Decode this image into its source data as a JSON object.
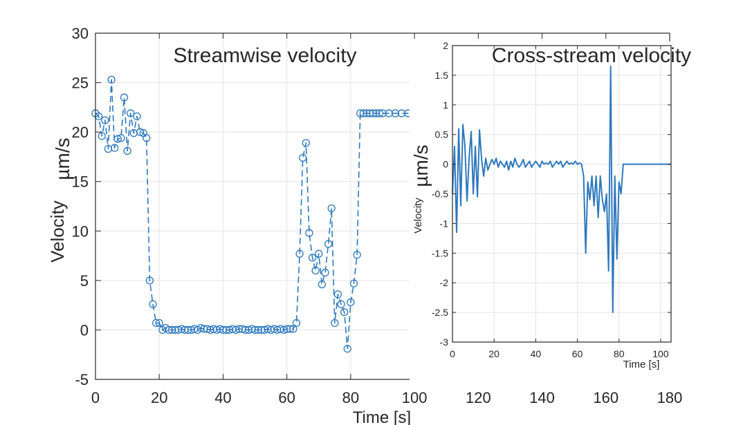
{
  "chart_data": [
    {
      "type": "line",
      "title": "Streamwise velocity",
      "xlabel": "Time [s]",
      "ylabel": "Velocity",
      "ylabel_unit": "µm/s",
      "xlim": [
        0,
        180
      ],
      "ylim": [
        -5,
        30
      ],
      "x_ticks": [
        "0",
        "20",
        "40",
        "60",
        "80",
        "100",
        "120",
        "140",
        "160",
        "180"
      ],
      "y_ticks": [
        "-5",
        "0",
        "5",
        "10",
        "15",
        "20",
        "25",
        "30"
      ],
      "grid": true,
      "line_style": "dashed",
      "marker": "circle",
      "color": "#2e78bd",
      "series": [
        {
          "x": [
            0,
            1,
            2,
            3,
            4,
            5,
            6,
            7,
            8,
            9,
            10,
            11,
            12,
            13,
            14,
            15,
            16,
            17,
            18,
            19,
            20,
            21,
            22,
            23,
            24,
            25,
            26,
            27,
            28,
            29,
            30,
            31,
            32,
            33,
            34,
            35,
            36,
            37,
            38,
            39,
            40,
            41,
            42,
            43,
            44,
            45,
            46,
            47,
            48,
            49,
            50,
            51,
            52,
            53,
            54,
            55,
            56,
            57,
            58,
            59,
            60,
            61,
            62,
            63,
            64,
            65,
            66,
            67,
            68,
            69,
            70,
            71,
            72,
            73,
            74,
            75,
            76,
            77,
            78,
            79,
            80,
            81,
            82,
            83,
            84,
            85,
            86,
            87,
            88,
            89,
            90,
            92,
            94,
            96,
            98,
            100,
            102,
            104,
            106,
            108,
            110,
            112,
            114,
            116,
            118,
            120
          ],
          "y": [
            21.9,
            21.6,
            19.6,
            21.2,
            18.3,
            25.3,
            18.4,
            19.3,
            19.4,
            23.5,
            18.1,
            21.9,
            19.9,
            21.6,
            20.0,
            19.9,
            19.4,
            5.0,
            2.6,
            0.7,
            0.7,
            0.0,
            0.2,
            0.0,
            0.0,
            0.0,
            0.0,
            0.1,
            0.0,
            0.0,
            0.0,
            0.1,
            0.0,
            0.2,
            0.1,
            0.1,
            0.0,
            0.1,
            0.0,
            0.1,
            0.0,
            0.0,
            0.0,
            0.1,
            0.0,
            0.1,
            0.1,
            0.0,
            0.0,
            0.1,
            0.0,
            0.0,
            0.0,
            0.0,
            0.1,
            0.0,
            0.1,
            0.0,
            0.1,
            0.0,
            0.1,
            0.1,
            0.1,
            0.7,
            7.7,
            17.4,
            18.9,
            9.8,
            7.3,
            6.0,
            7.7,
            4.6,
            5.8,
            8.7,
            12.3,
            0.7,
            3.6,
            2.6,
            1.8,
            -1.9,
            2.8,
            4.7,
            7.6,
            21.9,
            21.9,
            21.9,
            21.9,
            21.9,
            21.9,
            21.9,
            21.9,
            21.9,
            21.9,
            21.9,
            21.9,
            21.9,
            21.9,
            21.9,
            21.9,
            21.9,
            21.9,
            21.9,
            21.9,
            21.9,
            21.9,
            21.9
          ]
        }
      ]
    },
    {
      "type": "line",
      "title": "Cross-stream velocity",
      "xlabel": "Time [s]",
      "ylabel": "Velocity",
      "ylabel_unit": "µm/s",
      "xlim": [
        0,
        105
      ],
      "ylim": [
        -3,
        2
      ],
      "x_ticks": [
        "0",
        "20",
        "40",
        "60",
        "80",
        "100"
      ],
      "y_ticks": [
        "-3",
        "-2.5",
        "-2",
        "-1.5",
        "-1",
        "-0.5",
        "0",
        "0.5",
        "1",
        "1.5",
        "2"
      ],
      "grid": true,
      "line_style": "solid",
      "color": "#2e78bd",
      "series": [
        {
          "x": [
            0,
            1,
            2,
            3,
            4,
            5,
            6,
            7,
            8,
            9,
            10,
            11,
            12,
            13,
            14,
            15,
            16,
            17,
            18,
            19,
            20,
            21,
            22,
            23,
            24,
            25,
            26,
            27,
            28,
            29,
            30,
            31,
            32,
            33,
            34,
            35,
            36,
            37,
            38,
            39,
            40,
            41,
            42,
            43,
            44,
            45,
            46,
            47,
            48,
            49,
            50,
            51,
            52,
            53,
            54,
            55,
            56,
            57,
            58,
            59,
            60,
            61,
            62,
            63,
            64,
            65,
            66,
            67,
            68,
            69,
            70,
            71,
            72,
            73,
            74,
            75,
            76,
            77,
            78,
            79,
            80,
            81,
            82,
            84,
            86,
            88,
            90,
            92,
            94,
            96,
            98,
            100,
            102,
            104,
            105
          ],
          "y": [
            -0.5,
            0.3,
            -1.15,
            0.6,
            -0.7,
            0.67,
            0.3,
            -0.62,
            0.1,
            0.55,
            -0.5,
            0.3,
            -0.55,
            0.58,
            0.08,
            -0.2,
            0.1,
            -0.1,
            0.0,
            0.08,
            0.0,
            0.1,
            -0.05,
            0.05,
            0.0,
            -0.05,
            0.05,
            -0.1,
            0.05,
            -0.05,
            0.1,
            0.0,
            -0.05,
            0.0,
            0.08,
            -0.05,
            0.0,
            0.05,
            -0.05,
            0.0,
            0.05,
            0.0,
            -0.05,
            0.05,
            0.0,
            0.02,
            0.0,
            0.05,
            -0.05,
            0.0,
            0.05,
            0.0,
            0.05,
            -0.05,
            0.0,
            0.05,
            0.0,
            0.02,
            0.0,
            0.05,
            0.0,
            0.02,
            0.0,
            -0.2,
            -1.5,
            -0.3,
            -0.6,
            -0.2,
            -0.7,
            -0.2,
            -0.9,
            -0.2,
            -0.6,
            -0.8,
            -0.5,
            -1.8,
            1.65,
            -2.5,
            -0.2,
            -1.6,
            -0.3,
            -0.5,
            0.0,
            0.0,
            0.0,
            0.0,
            0.0,
            0.0,
            0.0,
            0.0,
            0.0,
            0.0,
            0.0,
            0.0,
            0.0
          ]
        }
      ]
    }
  ]
}
